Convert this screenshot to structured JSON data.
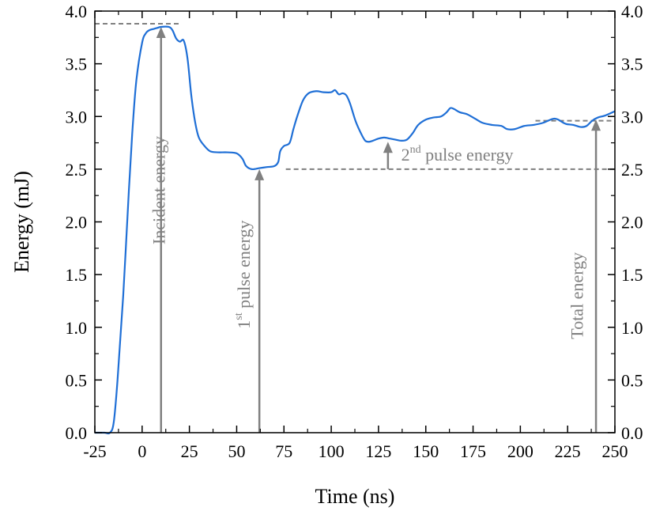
{
  "chart_data": {
    "type": "line",
    "xlabel": "Time (ns)",
    "ylabel": "Energy (mJ)",
    "xlim": [
      -25,
      250
    ],
    "ylim": [
      0.0,
      4.0
    ],
    "x_ticks": [
      "-25",
      "0",
      "25",
      "50",
      "75",
      "100",
      "125",
      "150",
      "175",
      "200",
      "225",
      "250"
    ],
    "y_ticks_left": [
      "0.0",
      "0.5",
      "1.0",
      "1.5",
      "2.0",
      "2.5",
      "3.0",
      "3.5",
      "4.0"
    ],
    "y_ticks_right": [
      "0.0",
      "0.5",
      "1.0",
      "1.5",
      "2.0",
      "2.5",
      "3.0",
      "3.5",
      "4.0"
    ],
    "grid": false,
    "line_color": "#1f6fd6",
    "annotation_color": "#808080",
    "series": [
      {
        "x": [
          -25,
          -20,
          -17,
          -15,
          -13,
          -10,
          -7,
          -5,
          -3,
          0,
          2,
          4,
          6,
          8,
          10,
          14,
          16,
          18,
          20,
          22,
          24,
          26,
          28,
          30,
          33,
          36,
          40,
          45,
          50,
          53,
          55,
          58,
          62,
          66,
          70,
          72,
          73,
          75,
          78,
          80,
          82,
          85,
          88,
          92,
          96,
          100,
          102,
          104,
          106,
          108,
          110,
          113,
          116,
          118,
          120,
          122,
          125,
          128,
          131,
          134,
          137,
          140,
          143,
          146,
          150,
          154,
          158,
          161,
          163,
          165,
          168,
          172,
          176,
          180,
          185,
          190,
          193,
          197,
          202,
          207,
          212,
          216,
          218,
          220,
          224,
          228,
          232,
          235,
          238,
          241,
          245,
          250
        ],
        "y": [
          0.0,
          0.0,
          0.0,
          0.1,
          0.5,
          1.3,
          2.3,
          2.9,
          3.35,
          3.7,
          3.79,
          3.82,
          3.83,
          3.84,
          3.85,
          3.85,
          3.82,
          3.74,
          3.71,
          3.72,
          3.55,
          3.2,
          2.95,
          2.8,
          2.72,
          2.67,
          2.66,
          2.66,
          2.65,
          2.6,
          2.53,
          2.5,
          2.51,
          2.52,
          2.53,
          2.57,
          2.67,
          2.72,
          2.75,
          2.88,
          3.0,
          3.15,
          3.22,
          3.24,
          3.23,
          3.23,
          3.25,
          3.21,
          3.22,
          3.2,
          3.12,
          2.95,
          2.83,
          2.77,
          2.76,
          2.77,
          2.79,
          2.8,
          2.79,
          2.78,
          2.77,
          2.78,
          2.84,
          2.92,
          2.97,
          2.99,
          3.0,
          3.04,
          3.08,
          3.07,
          3.04,
          3.02,
          2.98,
          2.94,
          2.92,
          2.91,
          2.88,
          2.88,
          2.91,
          2.92,
          2.94,
          2.97,
          2.98,
          2.97,
          2.93,
          2.92,
          2.9,
          2.91,
          2.96,
          2.99,
          3.01,
          3.05
        ]
      }
    ],
    "annotations": [
      {
        "id": "incident",
        "text": "Incident energy",
        "arrow_x": 10,
        "arrow_from": 0.0,
        "arrow_to": 3.85,
        "ref_line_y": 3.88,
        "ref_line_x": [
          -25,
          20
        ],
        "label_x": 12,
        "label_y": 2.3
      },
      {
        "id": "first-pulse",
        "text_sup": "st",
        "text_prefix": "1",
        "text_rest": " pulse energy",
        "arrow_x": 62,
        "arrow_from": 0.0,
        "arrow_to": 2.5,
        "label_x": 57,
        "label_y": 1.5
      },
      {
        "id": "second-pulse",
        "text_prefix": "2",
        "text_sup": "nd",
        "text_rest": " pulse energy",
        "arrow_x": 130,
        "arrow_from": 2.5,
        "arrow_to": 2.76,
        "ref_line_y": 2.5,
        "ref_line_x": [
          76,
          250
        ],
        "label_x": 137,
        "label_y": 2.58
      },
      {
        "id": "total",
        "text": "Total energy",
        "arrow_x": 240,
        "arrow_from": 0.0,
        "arrow_to": 2.97,
        "ref_line_y": 2.96,
        "ref_line_x": [
          208,
          250
        ],
        "label_x": 233,
        "label_y": 1.3
      }
    ]
  }
}
